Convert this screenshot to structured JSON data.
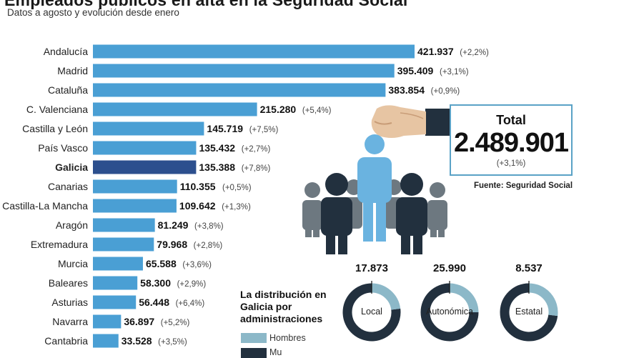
{
  "header": {
    "title": "Empleados públicos en alta en la Seguridad Social",
    "subtitle": "Datos a agosto y evolución desde enero"
  },
  "chart_data": [
    {
      "type": "bar",
      "orientation": "horizontal",
      "title": "Empleados públicos en alta en la Seguridad Social",
      "subtitle": "Datos a agosto y evolución desde enero",
      "categories": [
        "Andalucía",
        "Madrid",
        "Cataluña",
        "C. Valenciana",
        "Castilla y León",
        "País Vasco",
        "Galicia",
        "Canarias",
        "Castilla-La Mancha",
        "Aragón",
        "Extremadura",
        "Murcia",
        "Baleares",
        "Asturias",
        "Navarra",
        "Cantabria"
      ],
      "values": [
        421937,
        395409,
        383854,
        215280,
        145719,
        135432,
        135388,
        110355,
        109642,
        81249,
        79968,
        65588,
        58300,
        56448,
        36897,
        33528
      ],
      "value_labels": [
        "421.937",
        "395.409",
        "383.854",
        "215.280",
        "145.719",
        "135.432",
        "135.388",
        "110.355",
        "109.642",
        "81.249",
        "79.968",
        "65.588",
        "58.300",
        "56.448",
        "36.897",
        "33.528"
      ],
      "change_labels": [
        "(+2,2%)",
        "(+3,1%)",
        "(+0,9%)",
        "(+5,4%)",
        "(+7,5%)",
        "(+2,7%)",
        "(+7,8%)",
        "(+0,5%)",
        "(+1,3%)",
        "(+3,8%)",
        "(+2,8%)",
        "(+3,6%)",
        "(+2,9%)",
        "(+6,4%)",
        "(+5,2%)",
        "(+3,5%)"
      ],
      "highlight": "Galicia",
      "colors": {
        "bar": "#4a9fd4",
        "highlight": "#2c4f8e"
      }
    },
    {
      "type": "pie",
      "variant": "donut",
      "title": "La distribución en Galicia por administraciones",
      "legend": [
        "Hombres",
        "Mujeres"
      ],
      "legend_visible": [
        "Hombres",
        "Mu"
      ],
      "colors": {
        "Hombres": "#8cb8c8",
        "Mujeres": "#22303e"
      },
      "categories": [
        "Local",
        "Autonómica",
        "Estatal"
      ],
      "totals": [
        17873,
        25990,
        8537
      ],
      "total_labels": [
        "17.873",
        "25.990",
        "8.537"
      ],
      "hombres_share": [
        0.23,
        0.25,
        0.27
      ]
    }
  ],
  "total": {
    "label": "Total",
    "value": "2.489.901",
    "change": "(+3,1%)"
  },
  "source": "Fuente: Seguridad Social"
}
